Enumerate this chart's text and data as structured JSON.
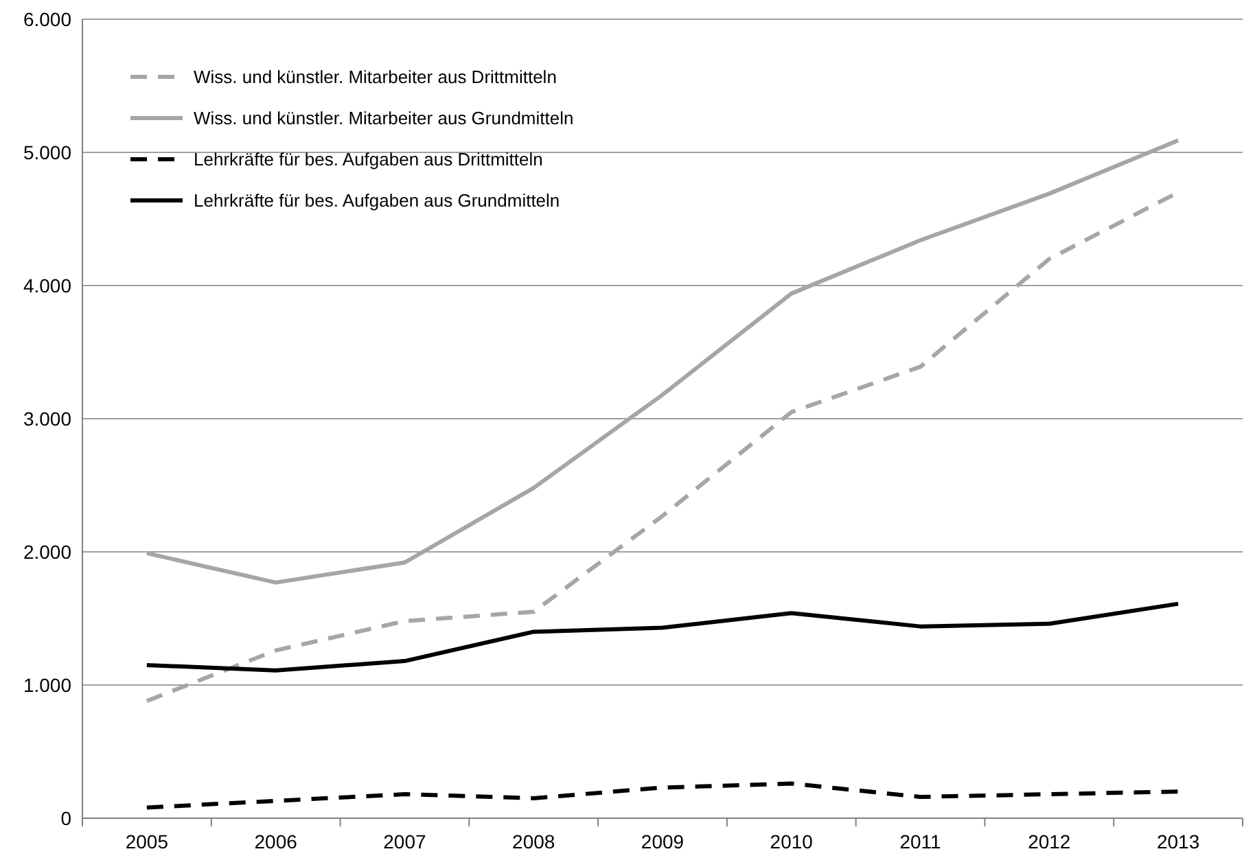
{
  "chart_data": {
    "type": "line",
    "categories": [
      "2005",
      "2006",
      "2007",
      "2008",
      "2009",
      "2010",
      "2011",
      "2012",
      "2013"
    ],
    "series": [
      {
        "name": "Wiss. und künstler. Mitarbeiter aus Drittmitteln",
        "color": "#a6a6a6",
        "line_style": "dashed",
        "values": [
          880,
          1260,
          1480,
          1550,
          2270,
          3050,
          3390,
          4200,
          4700
        ]
      },
      {
        "name": "Wiss. und künstler. Mitarbeiter aus Grundmitteln",
        "color": "#a6a6a6",
        "line_style": "solid",
        "values": [
          1990,
          1770,
          1920,
          2480,
          3180,
          3940,
          4340,
          4690,
          5090
        ]
      },
      {
        "name": "Lehrkräfte für bes. Aufgaben aus Drittmitteln",
        "color": "#000000",
        "line_style": "dashed",
        "values": [
          80,
          130,
          180,
          150,
          230,
          260,
          160,
          180,
          200
        ]
      },
      {
        "name": "Lehrkräfte für bes. Aufgaben aus Grundmitteln",
        "color": "#000000",
        "line_style": "solid",
        "values": [
          1150,
          1110,
          1180,
          1400,
          1430,
          1540,
          1440,
          1460,
          1610
        ]
      }
    ],
    "ylim": [
      0,
      6000
    ],
    "yticks": [
      {
        "value": 0,
        "label": "0"
      },
      {
        "value": 1000,
        "label": "1.000"
      },
      {
        "value": 2000,
        "label": "2.000"
      },
      {
        "value": 3000,
        "label": "3.000"
      },
      {
        "value": 4000,
        "label": "4.000"
      },
      {
        "value": 5000,
        "label": "5.000"
      },
      {
        "value": 6000,
        "label": "6.000"
      }
    ],
    "grid": "y",
    "legend": "top left",
    "marker": "none"
  }
}
